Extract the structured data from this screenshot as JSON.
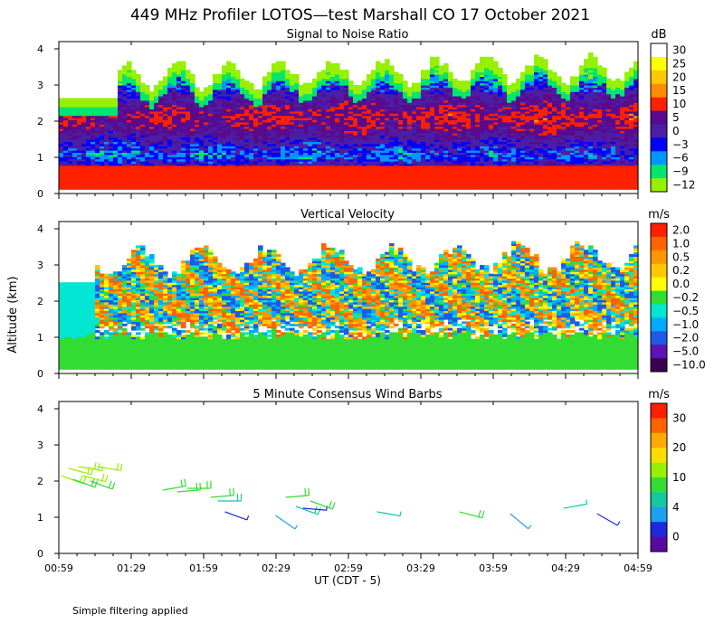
{
  "figure": {
    "title": "449 MHz Profiler LOTOS—test Marshall CO 17 October 2021",
    "ylabel": "Altitude (km)",
    "xlabel": "UT  (CDT - 5)",
    "footnote": "Simple filtering applied"
  },
  "chart_data": [
    {
      "type": "heatmap",
      "title": "Signal to Noise Ratio",
      "units": "dB",
      "ylim": [
        0,
        4.2
      ],
      "yticks": [
        "0",
        "1",
        "2",
        "3",
        "4"
      ],
      "xlim_hours": [
        0.983,
        4.983
      ],
      "xtick_labels": [
        "00:59",
        "01:29",
        "01:59",
        "02:29",
        "02:59",
        "03:29",
        "03:59",
        "04:29",
        "04:59"
      ],
      "colorbar_labels": [
        "30",
        "25",
        "20",
        "15",
        "10",
        "5",
        "0",
        "−3",
        "−6",
        "−9",
        "−12"
      ],
      "colorbar_colors": [
        "#ffffff",
        "#ffff00",
        "#ffc800",
        "#ff8c00",
        "#ff2000",
        "#5a0a8c",
        "#4b1ea5",
        "#0000ff",
        "#0096ff",
        "#00e66e",
        "#96f000"
      ],
      "profile": {
        "altitude_km": [
          0.2,
          0.5,
          0.8,
          1.0,
          1.2,
          1.5,
          1.8,
          2.1,
          2.4,
          2.7,
          3.0,
          3.3,
          3.6
        ],
        "snr_db": [
          14,
          12,
          1,
          -4,
          -2,
          2,
          7,
          9,
          6,
          2,
          -4,
          -8,
          -12
        ]
      },
      "data_top_km": [
        2.6,
        3.7
      ]
    },
    {
      "type": "heatmap",
      "title": "Vertical Velocity",
      "units": "m/s",
      "ylim": [
        0,
        4.2
      ],
      "yticks": [
        "0",
        "1",
        "2",
        "3",
        "4"
      ],
      "colorbar_labels": [
        "2.0",
        "1.0",
        "0.5",
        "0.2",
        "0.0",
        "−0.2",
        "−0.5",
        "−1.0",
        "−2.0",
        "−5.0",
        "−10.0"
      ],
      "colorbar_colors": [
        "#ff2000",
        "#ff6400",
        "#ff9600",
        "#ffc800",
        "#ffff00",
        "#32dc32",
        "#00e6d2",
        "#00aaff",
        "#1e5ae6",
        "#5a14b4",
        "#3c0050"
      ],
      "surface_layer_km": [
        0,
        0.9
      ],
      "surface_value_ms": -0.2,
      "data_top_km": [
        2.6,
        3.6
      ]
    },
    {
      "type": "scatter",
      "title": "5 Minute Consensus Wind Barbs",
      "units": "m/s",
      "ylim": [
        0,
        4.2
      ],
      "yticks": [
        "0",
        "1",
        "2",
        "3",
        "4"
      ],
      "colorbar_labels": [
        "30",
        "20",
        "10",
        "4",
        "0"
      ],
      "colorbar_colors": [
        "#ff1e00",
        "#ff6400",
        "#ffaa00",
        "#ffdc00",
        "#96f000",
        "#32dc32",
        "#14c8a0",
        "#1ea0f0",
        "#1e28dc",
        "#5a0aa0"
      ],
      "barbs": [
        {
          "t": 1.0,
          "alt_km": 2.15,
          "speed": 12,
          "dir": 250
        },
        {
          "t": 1.05,
          "alt_km": 2.35,
          "speed": 12,
          "dir": 255
        },
        {
          "t": 1.08,
          "alt_km": 2.05,
          "speed": 11,
          "dir": 250
        },
        {
          "t": 1.12,
          "alt_km": 2.4,
          "speed": 13,
          "dir": 260
        },
        {
          "t": 1.15,
          "alt_km": 2.15,
          "speed": 12,
          "dir": 255
        },
        {
          "t": 1.2,
          "alt_km": 2.0,
          "speed": 11,
          "dir": 250
        },
        {
          "t": 1.25,
          "alt_km": 2.4,
          "speed": 12,
          "dir": 260
        },
        {
          "t": 1.7,
          "alt_km": 1.75,
          "speed": 10,
          "dir": 280
        },
        {
          "t": 1.8,
          "alt_km": 1.7,
          "speed": 10,
          "dir": 275
        },
        {
          "t": 1.87,
          "alt_km": 1.8,
          "speed": 9,
          "dir": 270
        },
        {
          "t": 2.03,
          "alt_km": 1.55,
          "speed": 9,
          "dir": 275
        },
        {
          "t": 2.08,
          "alt_km": 1.45,
          "speed": 8,
          "dir": 270
        },
        {
          "t": 2.13,
          "alt_km": 1.15,
          "speed": 3,
          "dir": 250
        },
        {
          "t": 2.48,
          "alt_km": 1.05,
          "speed": 5,
          "dir": 235
        },
        {
          "t": 2.55,
          "alt_km": 1.55,
          "speed": 9,
          "dir": 275
        },
        {
          "t": 2.62,
          "alt_km": 1.3,
          "speed": 8,
          "dir": 250
        },
        {
          "t": 2.67,
          "alt_km": 1.25,
          "speed": 3,
          "dir": 265
        },
        {
          "t": 2.72,
          "alt_km": 1.45,
          "speed": 9,
          "dir": 250
        },
        {
          "t": 3.18,
          "alt_km": 1.15,
          "speed": 6,
          "dir": 260
        },
        {
          "t": 3.75,
          "alt_km": 1.15,
          "speed": 9,
          "dir": 255
        },
        {
          "t": 4.1,
          "alt_km": 1.1,
          "speed": 5,
          "dir": 230
        },
        {
          "t": 4.47,
          "alt_km": 1.25,
          "speed": 6,
          "dir": 280
        },
        {
          "t": 4.7,
          "alt_km": 1.1,
          "speed": 3,
          "dir": 240
        }
      ]
    }
  ]
}
